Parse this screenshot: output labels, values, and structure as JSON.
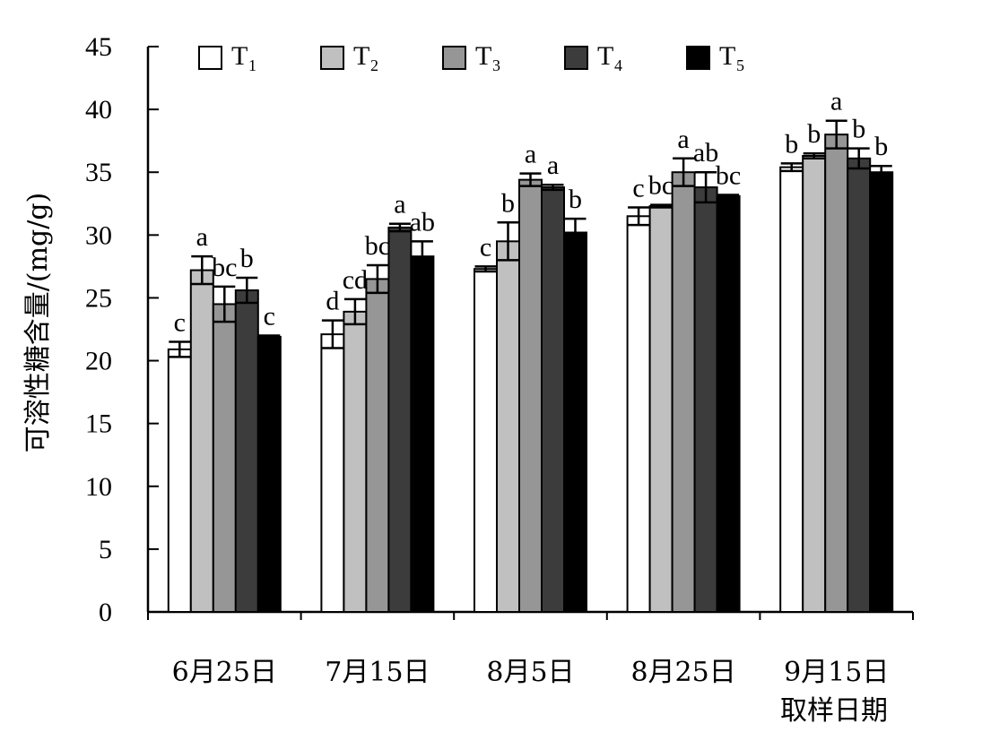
{
  "chart_data": {
    "type": "bar",
    "title": "",
    "xlabel": "取样日期",
    "ylabel": "可溶性糖含量/(mg/g)",
    "ylim": [
      0,
      45
    ],
    "yticks": [
      0,
      5,
      10,
      15,
      20,
      25,
      30,
      35,
      40,
      45
    ],
    "categories": [
      "6月25日",
      "7月15日",
      "8月5日",
      "8月25日",
      "9月15日"
    ],
    "legend_position": "top",
    "grid": false,
    "series": [
      {
        "name": "T1",
        "label_main": "T",
        "label_sub": "1",
        "color": "#ffffff",
        "values": [
          20.9,
          22.1,
          27.3,
          31.5,
          35.4
        ],
        "errors": [
          0.6,
          1.1,
          0.2,
          0.7,
          0.3
        ],
        "sig": [
          "c",
          "d",
          "c",
          "c",
          "b"
        ]
      },
      {
        "name": "T2",
        "label_main": "T",
        "label_sub": "2",
        "color": "#c0c0c0",
        "values": [
          27.2,
          23.9,
          29.5,
          32.3,
          36.3
        ],
        "errors": [
          1.1,
          1.0,
          1.5,
          0.1,
          0.2
        ],
        "sig": [
          "a",
          "cd",
          "b",
          "bc",
          "b"
        ]
      },
      {
        "name": "T3",
        "label_main": "T",
        "label_sub": "3",
        "color": "#969696",
        "values": [
          24.5,
          26.5,
          34.4,
          35.0,
          38.0
        ],
        "errors": [
          1.4,
          1.1,
          0.5,
          1.1,
          1.1
        ],
        "sig": [
          "bc",
          "bc",
          "a",
          "a",
          "a"
        ]
      },
      {
        "name": "T4",
        "label_main": "T",
        "label_sub": "4",
        "color": "#3c3c3c",
        "values": [
          25.6,
          30.6,
          33.8,
          33.8,
          36.1
        ],
        "errors": [
          1.0,
          0.3,
          0.2,
          1.2,
          0.8
        ],
        "sig": [
          "b",
          "a",
          "a",
          "ab",
          "b"
        ]
      },
      {
        "name": "T5",
        "label_main": "T",
        "label_sub": "5",
        "color": "#000000",
        "values": [
          21.9,
          28.3,
          30.2,
          33.1,
          35.0
        ],
        "errors": [
          0.1,
          1.2,
          1.1,
          0.1,
          0.5
        ],
        "sig": [
          "c",
          "ab",
          "b",
          "bc",
          "b"
        ]
      }
    ]
  }
}
